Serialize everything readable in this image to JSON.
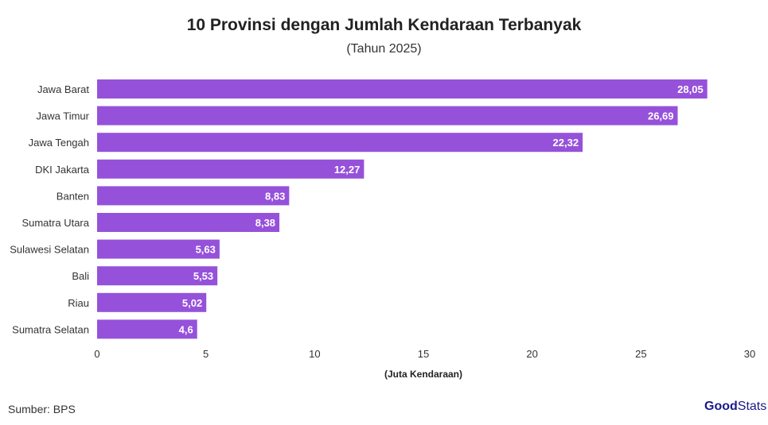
{
  "chart_data": {
    "type": "bar",
    "orientation": "horizontal",
    "title": "10 Provinsi dengan Jumlah Kendaraan Terbanyak",
    "subtitle": "(Tahun 2025)",
    "xlabel": "(Juta Kendaraan)",
    "ylabel": "",
    "xlim": [
      0,
      30
    ],
    "xticks": [
      0,
      5,
      10,
      15,
      20,
      25,
      30
    ],
    "categories": [
      "Jawa Barat",
      "Jawa Timur",
      "Jawa Tengah",
      "DKI Jakarta",
      "Banten",
      "Sumatra Utara",
      "Sulawesi Selatan",
      "Bali",
      "Riau",
      "Sumatra Selatan"
    ],
    "values": [
      28.05,
      26.69,
      22.32,
      12.27,
      8.83,
      8.38,
      5.63,
      5.53,
      5.02,
      4.6
    ],
    "data_labels": [
      "28,05",
      "26,69",
      "22,32",
      "12,27",
      "8,83",
      "8,38",
      "5,63",
      "5,53",
      "5,02",
      "4,6"
    ],
    "bar_color": "#9651DA",
    "grid": false
  },
  "source": "Sumber: BPS",
  "logo": {
    "part1": "Good",
    "part2": "Stats",
    "color": "#1a1a8c"
  }
}
